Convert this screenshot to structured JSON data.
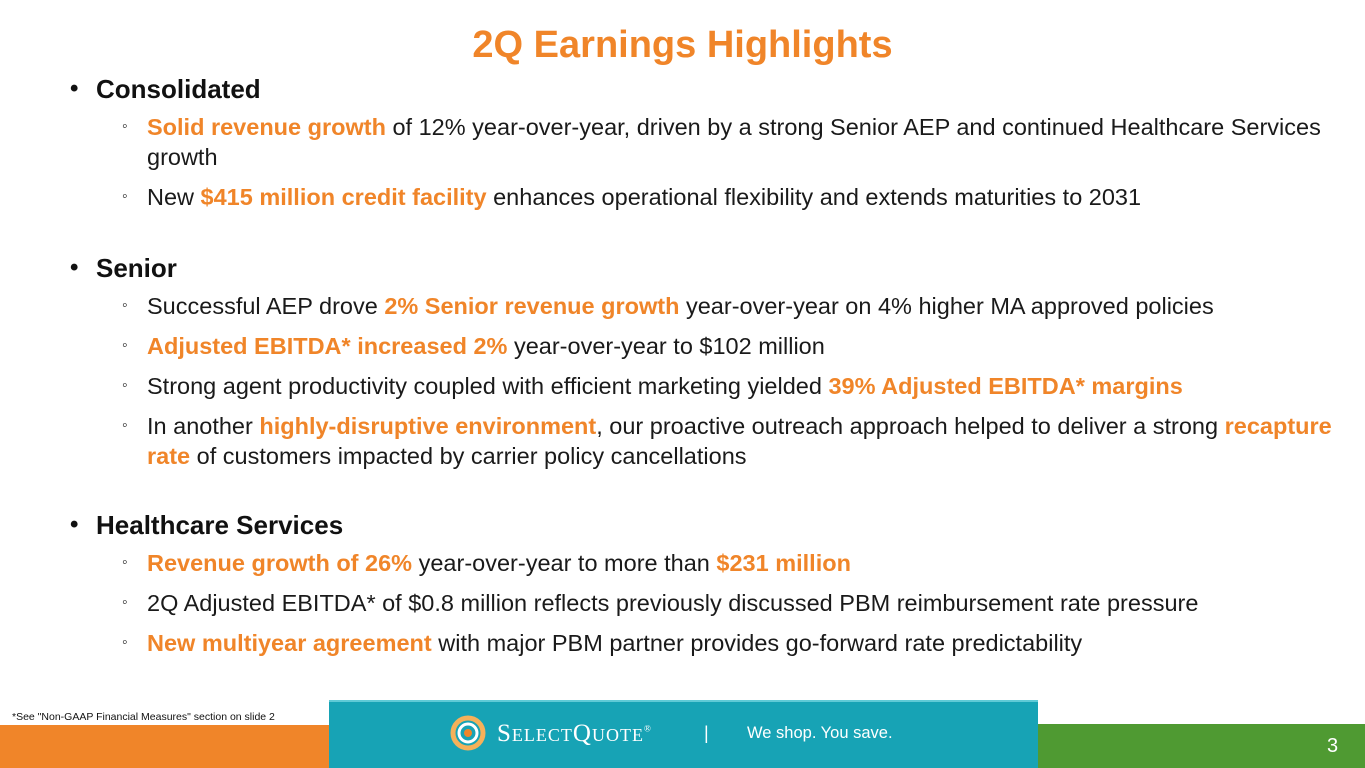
{
  "title": "2Q Earnings Highlights",
  "sections": [
    {
      "heading": "Consolidated",
      "bullets": [
        [
          {
            "t": "Solid revenue growth",
            "h": true
          },
          {
            "t": " of 12% year-over-year, driven by a strong Senior AEP and continued Healthcare Services growth",
            "h": false
          }
        ],
        [
          {
            "t": "New ",
            "h": false
          },
          {
            "t": "$415 million credit facility",
            "h": true
          },
          {
            "t": " enhances operational flexibility and extends maturities to 2031",
            "h": false
          }
        ]
      ]
    },
    {
      "heading": "Senior",
      "bullets": [
        [
          {
            "t": "Successful AEP drove ",
            "h": false
          },
          {
            "t": "2% Senior revenue growth",
            "h": true
          },
          {
            "t": " year-over-year on 4% higher MA approved policies",
            "h": false
          }
        ],
        [
          {
            "t": "Adjusted EBITDA* increased 2%",
            "h": true
          },
          {
            "t": " year-over-year to $102 million",
            "h": false
          }
        ],
        [
          {
            "t": "Strong agent productivity coupled with efficient marketing yielded ",
            "h": false
          },
          {
            "t": "39% Adjusted EBITDA* margins",
            "h": true
          }
        ],
        [
          {
            "t": "In another ",
            "h": false
          },
          {
            "t": "highly-disruptive environment",
            "h": true
          },
          {
            "t": ", our proactive outreach approach helped to deliver a strong ",
            "h": false
          },
          {
            "t": "recapture rate",
            "h": true
          },
          {
            "t": " of customers impacted by carrier policy cancellations",
            "h": false
          }
        ]
      ]
    },
    {
      "heading": "Healthcare Services",
      "bullets": [
        [
          {
            "t": "Revenue growth of 26%",
            "h": true
          },
          {
            "t": " year-over-year to more than ",
            "h": false
          },
          {
            "t": "$231 million",
            "h": true
          }
        ],
        [
          {
            "t": "2Q Adjusted EBITDA* of $0.8 million reflects previously discussed PBM reimbursement rate pressure",
            "h": false
          }
        ],
        [
          {
            "t": "New multiyear agreement",
            "h": true
          },
          {
            "t": " with major PBM partner provides go-forward rate predictability",
            "h": false
          }
        ]
      ]
    }
  ],
  "footnote": "*See \"Non-GAAP Financial Measures\" section on slide 2",
  "footer": {
    "brand": "SelectQuote",
    "trademark": "®",
    "separator": "|",
    "tagline": "We shop. You save.",
    "page_number": "3"
  },
  "colors": {
    "accent_orange": "#f08529",
    "teal": "#17a3b5",
    "green": "#4f9a32"
  }
}
